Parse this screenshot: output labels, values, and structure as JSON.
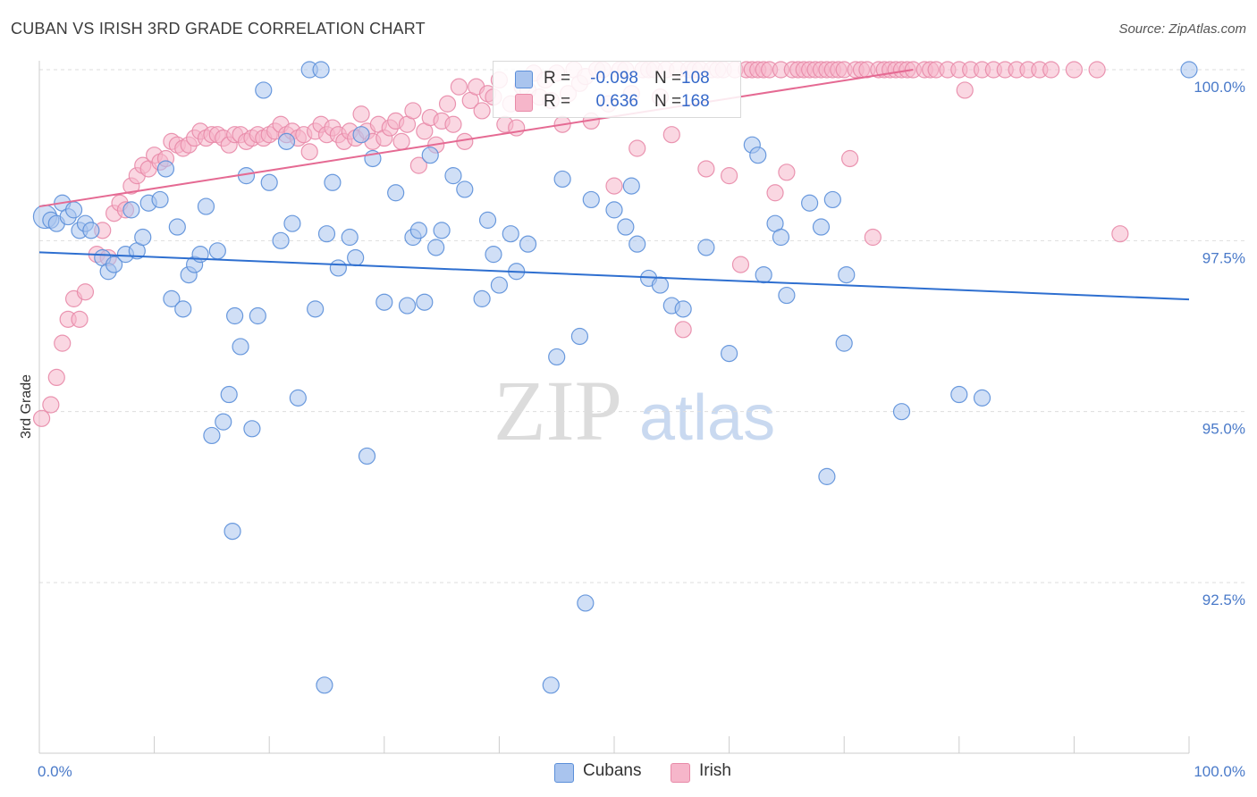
{
  "title": "CUBAN VS IRISH 3RD GRADE CORRELATION CHART",
  "source": "Source: ZipAtlas.com",
  "watermark": {
    "zip": "ZIP",
    "atlas": "atlas"
  },
  "colors": {
    "cubans_fill": "#a9c4ee",
    "cubans_stroke": "#5b8fd9",
    "cubans_line": "#2e6fd0",
    "irish_fill": "#f6b6ca",
    "irish_stroke": "#e88aa8",
    "irish_line": "#e56a93",
    "tick_text": "#4a7ac9",
    "grid": "#dddddd"
  },
  "legend": {
    "rows": [
      {
        "r_label": "R =",
        "r_value": "-0.098",
        "n_label": "N =",
        "n_value": "108",
        "series": "cubans"
      },
      {
        "r_label": "R =",
        "r_value": "0.636",
        "n_label": "N =",
        "n_value": "168",
        "series": "irish"
      }
    ]
  },
  "bottom_legend": [
    {
      "label": "Cubans",
      "series": "cubans"
    },
    {
      "label": "Irish",
      "series": "irish"
    }
  ],
  "chart_data": {
    "type": "scatter",
    "xlabel": "",
    "ylabel": "3rd Grade",
    "xlim": [
      0,
      100
    ],
    "ylim": [
      90.0,
      100.3
    ],
    "x_tick_labels": [
      {
        "value": 0,
        "label": "0.0%"
      },
      {
        "value": 100,
        "label": "100.0%"
      }
    ],
    "y_tick_labels": [
      {
        "value": 100.0,
        "label": "100.0%"
      },
      {
        "value": 97.5,
        "label": "97.5%"
      },
      {
        "value": 95.0,
        "label": "95.0%"
      },
      {
        "value": 92.5,
        "label": "92.5%"
      }
    ],
    "grid": "horizontal dashed",
    "legend_position": "top-center",
    "series": [
      {
        "name": "Cubans",
        "trend": {
          "x": [
            0,
            100
          ],
          "y": [
            97.33,
            96.64
          ]
        },
        "points": [
          [
            0.5,
            97.85
          ],
          [
            1,
            97.8
          ],
          [
            1.5,
            97.75
          ],
          [
            2,
            98.05
          ],
          [
            2.5,
            97.85
          ],
          [
            3,
            97.95
          ],
          [
            3.5,
            97.65
          ],
          [
            4,
            97.75
          ],
          [
            4.5,
            97.65
          ],
          [
            5.5,
            97.25
          ],
          [
            6,
            97.05
          ],
          [
            6.5,
            97.15
          ],
          [
            7.5,
            97.3
          ],
          [
            8,
            97.95
          ],
          [
            8.5,
            97.35
          ],
          [
            9,
            97.55
          ],
          [
            9.5,
            98.05
          ],
          [
            10.5,
            98.1
          ],
          [
            11,
            98.55
          ],
          [
            11.5,
            96.65
          ],
          [
            12,
            97.7
          ],
          [
            12.5,
            96.5
          ],
          [
            13,
            97.0
          ],
          [
            13.5,
            97.15
          ],
          [
            14,
            97.3
          ],
          [
            14.5,
            98.0
          ],
          [
            15,
            94.65
          ],
          [
            15.5,
            97.35
          ],
          [
            16,
            94.85
          ],
          [
            16.5,
            95.25
          ],
          [
            16.8,
            93.25
          ],
          [
            17,
            96.4
          ],
          [
            17.5,
            95.95
          ],
          [
            18,
            98.45
          ],
          [
            18.5,
            94.75
          ],
          [
            19,
            96.4
          ],
          [
            19.5,
            99.7
          ],
          [
            20,
            98.35
          ],
          [
            21,
            97.5
          ],
          [
            21.5,
            98.95
          ],
          [
            22,
            97.75
          ],
          [
            22.5,
            95.2
          ],
          [
            23.5,
            100.0
          ],
          [
            24,
            96.5
          ],
          [
            24.5,
            100.0
          ],
          [
            24.8,
            91.0
          ],
          [
            25,
            97.6
          ],
          [
            25.5,
            98.35
          ],
          [
            26,
            97.1
          ],
          [
            27,
            97.55
          ],
          [
            27.5,
            97.25
          ],
          [
            28,
            99.05
          ],
          [
            28.5,
            94.35
          ],
          [
            29,
            98.7
          ],
          [
            30,
            96.6
          ],
          [
            31,
            98.2
          ],
          [
            32,
            96.55
          ],
          [
            32.5,
            97.55
          ],
          [
            33,
            97.65
          ],
          [
            33.5,
            96.6
          ],
          [
            34,
            98.75
          ],
          [
            34.5,
            97.4
          ],
          [
            35,
            97.65
          ],
          [
            36,
            98.45
          ],
          [
            37,
            98.25
          ],
          [
            38.5,
            96.65
          ],
          [
            39,
            97.8
          ],
          [
            39.5,
            97.3
          ],
          [
            40,
            96.85
          ],
          [
            41,
            97.6
          ],
          [
            41.5,
            97.05
          ],
          [
            42.5,
            97.45
          ],
          [
            44.5,
            91.0
          ],
          [
            45,
            95.8
          ],
          [
            45.5,
            98.4
          ],
          [
            47,
            96.1
          ],
          [
            47.5,
            92.2
          ],
          [
            48,
            98.1
          ],
          [
            50,
            97.95
          ],
          [
            51,
            97.7
          ],
          [
            51.5,
            98.3
          ],
          [
            52,
            97.45
          ],
          [
            53,
            96.95
          ],
          [
            54,
            96.85
          ],
          [
            55,
            96.55
          ],
          [
            56,
            96.5
          ],
          [
            58,
            97.4
          ],
          [
            60,
            95.85
          ],
          [
            62,
            98.9
          ],
          [
            62.5,
            98.75
          ],
          [
            63,
            97.0
          ],
          [
            64,
            97.75
          ],
          [
            64.5,
            97.55
          ],
          [
            65,
            96.7
          ],
          [
            67,
            98.05
          ],
          [
            68,
            97.7
          ],
          [
            68.5,
            94.05
          ],
          [
            69,
            98.1
          ],
          [
            70,
            96.0
          ],
          [
            70.2,
            97.0
          ],
          [
            75,
            95.0
          ],
          [
            80,
            95.25
          ],
          [
            82,
            95.2
          ],
          [
            100,
            100.0
          ]
        ]
      },
      {
        "name": "Irish",
        "trend": {
          "x": [
            0,
            76
          ],
          "y": [
            98.0,
            100.0
          ]
        },
        "points": [
          [
            0.2,
            94.9
          ],
          [
            1,
            95.1
          ],
          [
            1.5,
            95.5
          ],
          [
            2,
            96.0
          ],
          [
            2.5,
            96.35
          ],
          [
            3,
            96.65
          ],
          [
            3.5,
            96.35
          ],
          [
            4,
            96.75
          ],
          [
            5,
            97.3
          ],
          [
            5.5,
            97.65
          ],
          [
            6,
            97.25
          ],
          [
            6.5,
            97.9
          ],
          [
            7,
            98.05
          ],
          [
            7.5,
            97.95
          ],
          [
            8,
            98.3
          ],
          [
            8.5,
            98.45
          ],
          [
            9,
            98.6
          ],
          [
            9.5,
            98.55
          ],
          [
            10,
            98.75
          ],
          [
            10.5,
            98.65
          ],
          [
            11,
            98.7
          ],
          [
            11.5,
            98.95
          ],
          [
            12,
            98.9
          ],
          [
            12.5,
            98.85
          ],
          [
            13,
            98.9
          ],
          [
            13.5,
            99.0
          ],
          [
            14,
            99.1
          ],
          [
            14.5,
            99.0
          ],
          [
            15,
            99.05
          ],
          [
            15.5,
            99.05
          ],
          [
            16,
            99.0
          ],
          [
            16.5,
            98.9
          ],
          [
            17,
            99.05
          ],
          [
            17.5,
            99.05
          ],
          [
            18,
            98.95
          ],
          [
            18.5,
            99.0
          ],
          [
            19,
            99.05
          ],
          [
            19.5,
            99.0
          ],
          [
            20,
            99.05
          ],
          [
            20.5,
            99.1
          ],
          [
            21,
            99.2
          ],
          [
            21.5,
            99.05
          ],
          [
            22,
            99.1
          ],
          [
            22.5,
            99.0
          ],
          [
            23,
            99.05
          ],
          [
            23.5,
            98.8
          ],
          [
            24,
            99.1
          ],
          [
            24.5,
            99.2
          ],
          [
            25,
            99.05
          ],
          [
            25.5,
            99.15
          ],
          [
            26,
            99.05
          ],
          [
            26.5,
            98.95
          ],
          [
            27,
            99.1
          ],
          [
            27.5,
            99.0
          ],
          [
            28,
            99.35
          ],
          [
            28.5,
            99.1
          ],
          [
            29,
            98.95
          ],
          [
            29.5,
            99.2
          ],
          [
            30,
            99.0
          ],
          [
            30.5,
            99.15
          ],
          [
            31,
            99.25
          ],
          [
            31.5,
            98.95
          ],
          [
            32,
            99.2
          ],
          [
            32.5,
            99.4
          ],
          [
            33,
            98.6
          ],
          [
            33.5,
            99.1
          ],
          [
            34,
            99.3
          ],
          [
            34.5,
            98.9
          ],
          [
            35,
            99.25
          ],
          [
            35.5,
            99.5
          ],
          [
            36,
            99.2
          ],
          [
            36.5,
            99.75
          ],
          [
            37,
            98.95
          ],
          [
            37.5,
            99.55
          ],
          [
            38,
            99.75
          ],
          [
            38.5,
            99.4
          ],
          [
            39,
            99.65
          ],
          [
            39.5,
            99.6
          ],
          [
            40,
            99.85
          ],
          [
            40.5,
            99.2
          ],
          [
            41,
            99.5
          ],
          [
            41.5,
            99.15
          ],
          [
            42,
            99.75
          ],
          [
            42.5,
            99.7
          ],
          [
            43,
            99.95
          ],
          [
            43.5,
            99.6
          ],
          [
            44,
            99.85
          ],
          [
            44.5,
            99.55
          ],
          [
            45,
            99.95
          ],
          [
            45.5,
            99.2
          ],
          [
            46,
            99.65
          ],
          [
            46.5,
            100.0
          ],
          [
            47,
            99.8
          ],
          [
            47.5,
            99.9
          ],
          [
            48,
            99.25
          ],
          [
            48.5,
            100.0
          ],
          [
            49,
            100.0
          ],
          [
            49.5,
            99.5
          ],
          [
            50,
            98.3
          ],
          [
            50.5,
            100.0
          ],
          [
            51,
            100.0
          ],
          [
            51.5,
            99.65
          ],
          [
            52,
            98.85
          ],
          [
            52.5,
            100.0
          ],
          [
            53,
            100.0
          ],
          [
            53.5,
            100.0
          ],
          [
            54,
            99.6
          ],
          [
            54.5,
            100.0
          ],
          [
            55,
            99.05
          ],
          [
            55.5,
            100.0
          ],
          [
            56,
            96.2
          ],
          [
            56.5,
            100.0
          ],
          [
            57,
            100.0
          ],
          [
            57.5,
            100.0
          ],
          [
            58,
            98.55
          ],
          [
            58.5,
            100.0
          ],
          [
            59,
            100.0
          ],
          [
            59.5,
            100.0
          ],
          [
            60,
            98.45
          ],
          [
            60.5,
            100.0
          ],
          [
            61,
            97.15
          ],
          [
            61.5,
            100.0
          ],
          [
            62,
            100.0
          ],
          [
            62.5,
            100.0
          ],
          [
            63,
            100.0
          ],
          [
            63.5,
            100.0
          ],
          [
            64,
            98.2
          ],
          [
            64.5,
            100.0
          ],
          [
            65,
            98.5
          ],
          [
            65.5,
            100.0
          ],
          [
            66,
            100.0
          ],
          [
            66.5,
            100.0
          ],
          [
            67,
            100.0
          ],
          [
            67.5,
            100.0
          ],
          [
            68,
            100.0
          ],
          [
            68.5,
            100.0
          ],
          [
            69,
            100.0
          ],
          [
            69.5,
            100.0
          ],
          [
            70,
            100.0
          ],
          [
            70.5,
            98.7
          ],
          [
            71,
            100.0
          ],
          [
            71.5,
            100.0
          ],
          [
            72,
            100.0
          ],
          [
            72.5,
            97.55
          ],
          [
            73,
            100.0
          ],
          [
            73.5,
            100.0
          ],
          [
            74,
            100.0
          ],
          [
            74.5,
            100.0
          ],
          [
            75,
            100.0
          ],
          [
            75.5,
            100.0
          ],
          [
            76,
            100.0
          ],
          [
            77,
            100.0
          ],
          [
            77.5,
            100.0
          ],
          [
            78,
            100.0
          ],
          [
            79,
            100.0
          ],
          [
            80,
            100.0
          ],
          [
            80.5,
            99.7
          ],
          [
            81,
            100.0
          ],
          [
            82,
            100.0
          ],
          [
            83,
            100.0
          ],
          [
            84,
            100.0
          ],
          [
            85,
            100.0
          ],
          [
            86,
            100.0
          ],
          [
            87,
            100.0
          ],
          [
            88,
            100.0
          ],
          [
            90,
            100.0
          ],
          [
            92,
            100.0
          ],
          [
            94,
            97.6
          ]
        ]
      }
    ]
  }
}
